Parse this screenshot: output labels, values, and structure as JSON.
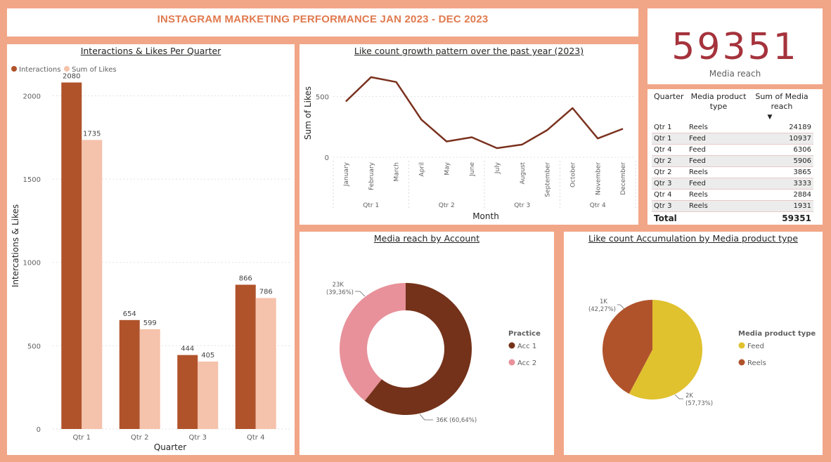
{
  "report_title": "INSTAGRAM MARKETING PERFORMANCE JAN 2023 - DEC 2023",
  "kpi": {
    "value": "59351",
    "label": "Media reach"
  },
  "colors": {
    "interactions": "#b0532b",
    "likes": "#f5c2ab",
    "line": "#7a321f",
    "acc1": "#74321a",
    "acc2": "#e8919a",
    "feed": "#e0c12e",
    "reels": "#b0532b",
    "kpi": "#a5333c",
    "title": "#e07a4f"
  },
  "table": {
    "headers": [
      "Quarter",
      "Media product type",
      "Sum of Media reach"
    ],
    "sort_indicator": "▼",
    "rows": [
      [
        "Qtr 1",
        "Reels",
        "24189"
      ],
      [
        "Qtr 1",
        "Feed",
        "10937"
      ],
      [
        "Qtr 4",
        "Feed",
        "6306"
      ],
      [
        "Qtr 2",
        "Feed",
        "5906"
      ],
      [
        "Qtr 2",
        "Reels",
        "3865"
      ],
      [
        "Qtr 3",
        "Feed",
        "3333"
      ],
      [
        "Qtr 4",
        "Reels",
        "2884"
      ],
      [
        "Qtr 3",
        "Reels",
        "1931"
      ]
    ],
    "total_label": "Total",
    "total_value": "59351"
  },
  "chart_data": [
    {
      "id": "bar",
      "type": "bar",
      "title": "Interactions & Likes Per Quarter",
      "xlabel": "Quarter",
      "ylabel": "Intercations & Likes",
      "categories": [
        "Qtr 1",
        "Qtr 2",
        "Qtr 3",
        "Qtr 4"
      ],
      "series": [
        {
          "name": "Interactions",
          "values": [
            2080,
            654,
            444,
            866
          ]
        },
        {
          "name": "Sum of Likes",
          "values": [
            1735,
            599,
            405,
            786
          ]
        }
      ],
      "yticks": [
        0,
        500,
        1000,
        1500,
        2000
      ],
      "ylim": [
        0,
        2200
      ],
      "legend": "top-left",
      "grid": true
    },
    {
      "id": "line",
      "type": "line",
      "title": "Like count growth pattern over the past year (2023)",
      "xlabel": "Month",
      "ylabel": "Sum of Likes",
      "x": [
        "January",
        "February",
        "March",
        "April",
        "May",
        "June",
        "July",
        "August",
        "September",
        "October",
        "November",
        "December"
      ],
      "groups": [
        "Qtr 1",
        "Qtr 2",
        "Qtr 3",
        "Qtr 4"
      ],
      "values": [
        460,
        660,
        620,
        310,
        130,
        165,
        75,
        105,
        225,
        405,
        155,
        235
      ],
      "yticks": [
        0,
        500
      ],
      "ylim": [
        0,
        700
      ],
      "grid": true
    },
    {
      "id": "donut",
      "type": "pie",
      "title": "Media reach by Account",
      "legend_title": "Practice",
      "legend": "right",
      "slices": [
        {
          "name": "Acc 1",
          "value": 36,
          "label": "36K (60,64%)",
          "percent": 60.64
        },
        {
          "name": "Acc 2",
          "value": 23,
          "label": "23K (39,36%)",
          "percent": 39.36
        }
      ]
    },
    {
      "id": "pie",
      "type": "pie",
      "title": "Like count Accumulation by Media product type",
      "legend_title": "Media product type",
      "legend": "right",
      "slices": [
        {
          "name": "Feed",
          "value": 2,
          "label": "2K (57,73%)",
          "percent": 57.73
        },
        {
          "name": "Reels",
          "value": 1,
          "label": "1K (42,27%)",
          "percent": 42.27
        }
      ]
    }
  ]
}
